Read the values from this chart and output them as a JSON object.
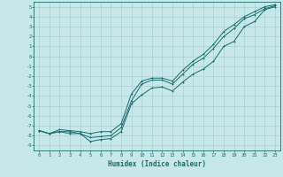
{
  "xlabel": "Humidex (Indice chaleur)",
  "bg_color": "#c6e8e8",
  "grid_color": "#a8d0d0",
  "line_color": "#1a6b6b",
  "xlim": [
    -0.5,
    23.5
  ],
  "ylim": [
    -9.5,
    5.5
  ],
  "x_ticks": [
    0,
    1,
    2,
    3,
    4,
    5,
    6,
    7,
    8,
    9,
    10,
    11,
    12,
    13,
    14,
    15,
    16,
    17,
    18,
    19,
    20,
    21,
    22,
    23
  ],
  "y_ticks": [
    5,
    4,
    3,
    2,
    1,
    0,
    -1,
    -2,
    -3,
    -4,
    -5,
    -6,
    -7,
    -8,
    -9
  ],
  "line1_x": [
    0,
    1,
    2,
    3,
    4,
    5,
    6,
    7,
    8,
    9,
    10,
    11,
    12,
    13,
    14,
    15,
    16,
    17,
    18,
    19,
    20,
    21,
    22,
    23
  ],
  "line1_y": [
    -7.5,
    -7.8,
    -7.6,
    -7.8,
    -7.8,
    -8.6,
    -8.4,
    -8.3,
    -7.6,
    -4.8,
    -3.9,
    -3.2,
    -3.1,
    -3.5,
    -2.6,
    -1.8,
    -1.3,
    -0.5,
    1.0,
    1.5,
    3.0,
    3.5,
    4.7,
    5.0
  ],
  "line2_x": [
    0,
    1,
    2,
    3,
    4,
    5,
    6,
    7,
    8,
    9,
    10,
    11,
    12,
    13,
    14,
    15,
    16,
    17,
    18,
    19,
    20,
    21,
    22,
    23
  ],
  "line2_y": [
    -7.5,
    -7.8,
    -7.6,
    -7.6,
    -7.8,
    -8.2,
    -8.1,
    -8.0,
    -7.2,
    -4.5,
    -2.8,
    -2.4,
    -2.4,
    -2.8,
    -1.8,
    -0.8,
    -0.2,
    0.8,
    2.0,
    2.8,
    3.8,
    4.2,
    4.8,
    5.1
  ],
  "line3_x": [
    0,
    1,
    2,
    3,
    4,
    5,
    6,
    7,
    8,
    9,
    10,
    11,
    12,
    13,
    14,
    15,
    16,
    17,
    18,
    19,
    20,
    21,
    22,
    23
  ],
  "line3_y": [
    -7.5,
    -7.8,
    -7.4,
    -7.5,
    -7.6,
    -7.8,
    -7.6,
    -7.6,
    -6.8,
    -3.8,
    -2.5,
    -2.2,
    -2.2,
    -2.5,
    -1.4,
    -0.5,
    0.2,
    1.2,
    2.5,
    3.2,
    4.0,
    4.5,
    5.0,
    5.2
  ]
}
